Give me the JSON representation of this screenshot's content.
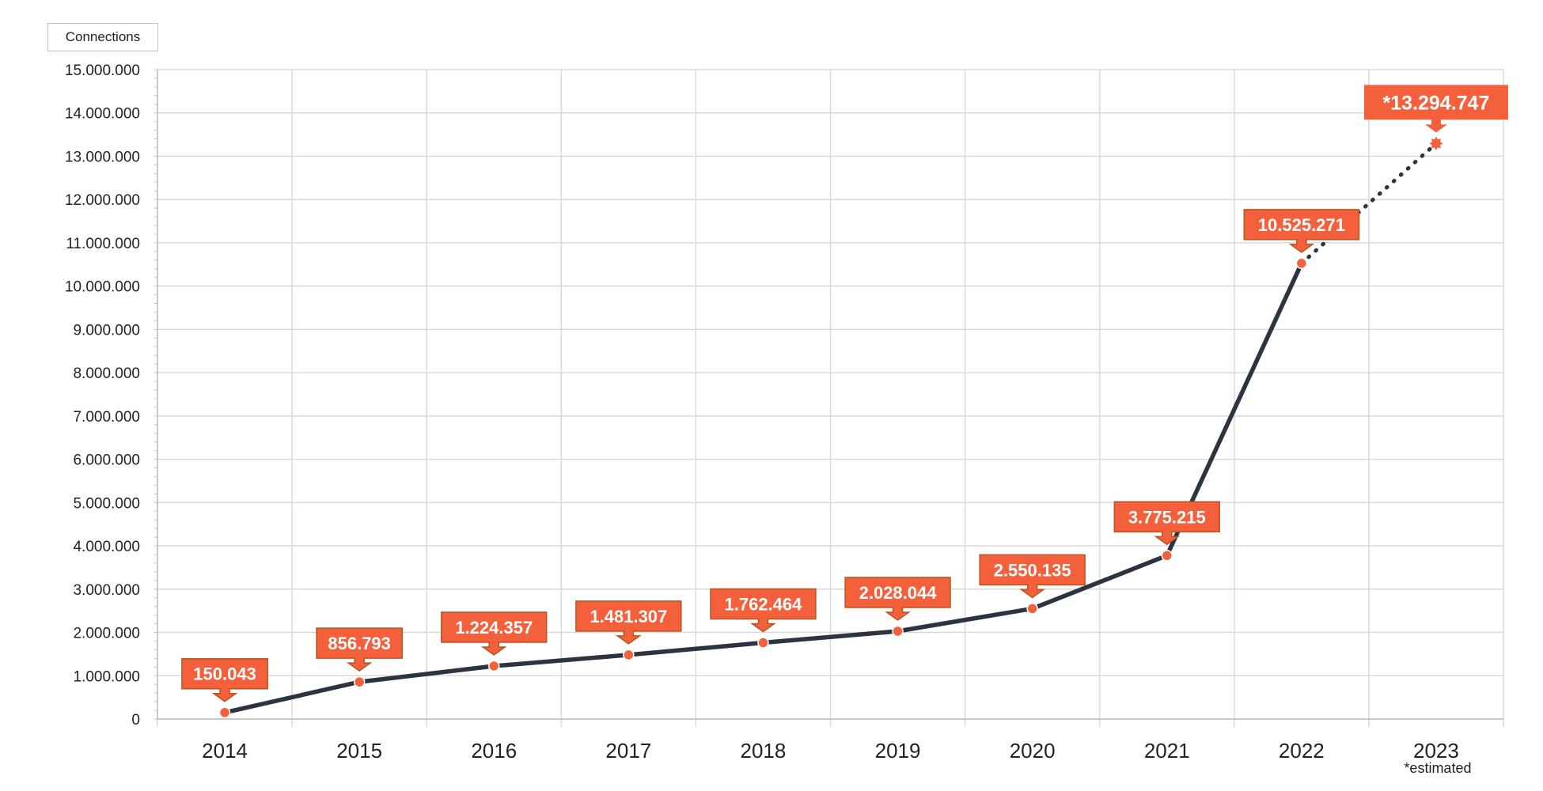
{
  "legend": {
    "label": "Connections"
  },
  "colors": {
    "line": "#2b3440",
    "marker": "#f4603b",
    "callout_fill": "#f4603b",
    "callout_border": "#b8541f",
    "grid": "#d9d9d9"
  },
  "chart_data": {
    "type": "line",
    "title": "",
    "xlabel": "",
    "ylabel": "",
    "categories": [
      "2014",
      "2015",
      "2016",
      "2017",
      "2018",
      "2019",
      "2020",
      "2021",
      "2022",
      "2023"
    ],
    "series": [
      {
        "name": "Connections",
        "values": [
          150043,
          856793,
          1224357,
          1481307,
          1762464,
          2028044,
          2550135,
          3775215,
          10525271,
          13294747
        ],
        "labels": [
          "150.043",
          "856.793",
          "1.224.357",
          "1.481.307",
          "1.762.464",
          "2.028.044",
          "2.550.135",
          "3.775.215",
          "10.525.271",
          "*13.294.747"
        ],
        "estimated_from_index": 8
      }
    ],
    "ylim": [
      0,
      15000000
    ],
    "yticks": [
      0,
      1000000,
      2000000,
      3000000,
      4000000,
      5000000,
      6000000,
      7000000,
      8000000,
      9000000,
      10000000,
      11000000,
      12000000,
      13000000,
      14000000,
      15000000
    ],
    "ytick_labels": [
      "0",
      "1.000.000",
      "2.000.000",
      "3.000.000",
      "4.000.000",
      "5.000.000",
      "6.000.000",
      "7.000.000",
      "8.000.000",
      "9.000.000",
      "10.000.000",
      "11.000.000",
      "12.000.000",
      "13.000.000",
      "14.000.000",
      "15.000.000"
    ],
    "grid": true,
    "legend_position": "top-left",
    "annotation": "*estimated"
  }
}
